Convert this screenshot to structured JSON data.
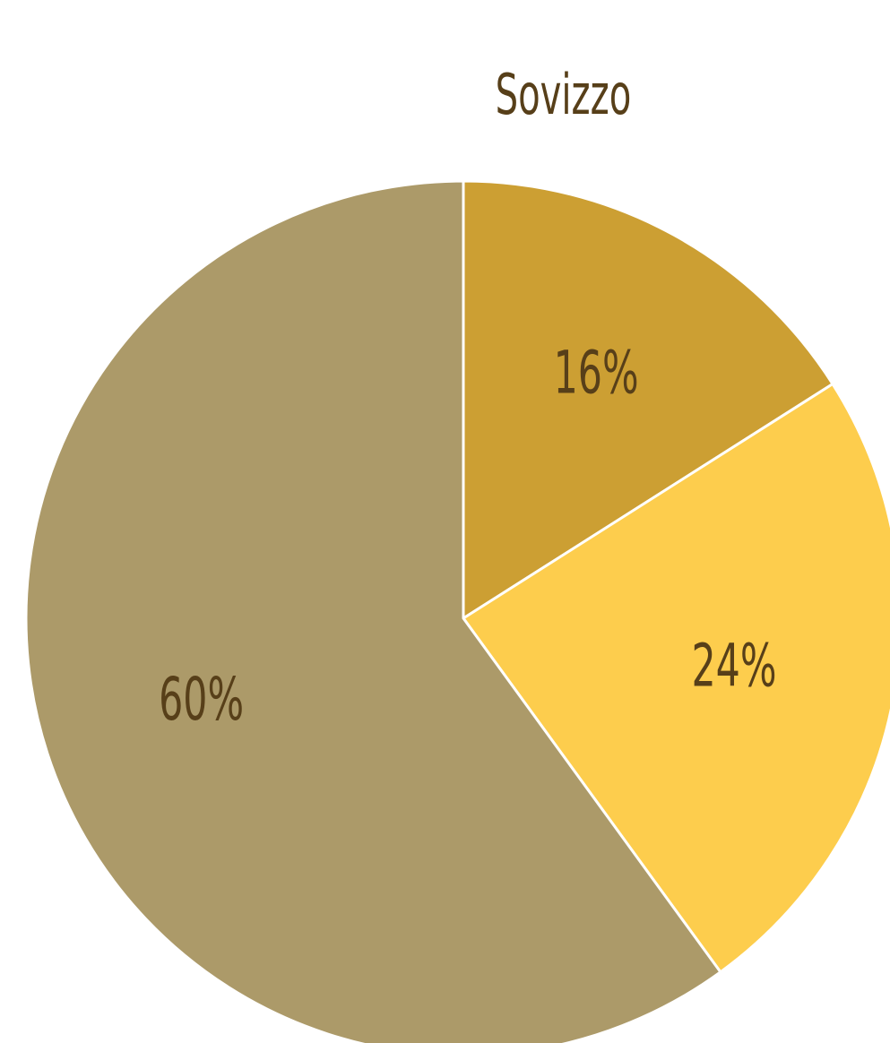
{
  "chart_data": {
    "type": "pie",
    "title": "Sovizzo",
    "values": [
      16,
      24,
      60
    ],
    "value_labels": [
      "16%",
      "24%",
      "60%"
    ],
    "colors": [
      "#cc9f33",
      "#fdcd4d",
      "#ac9a69"
    ]
  }
}
